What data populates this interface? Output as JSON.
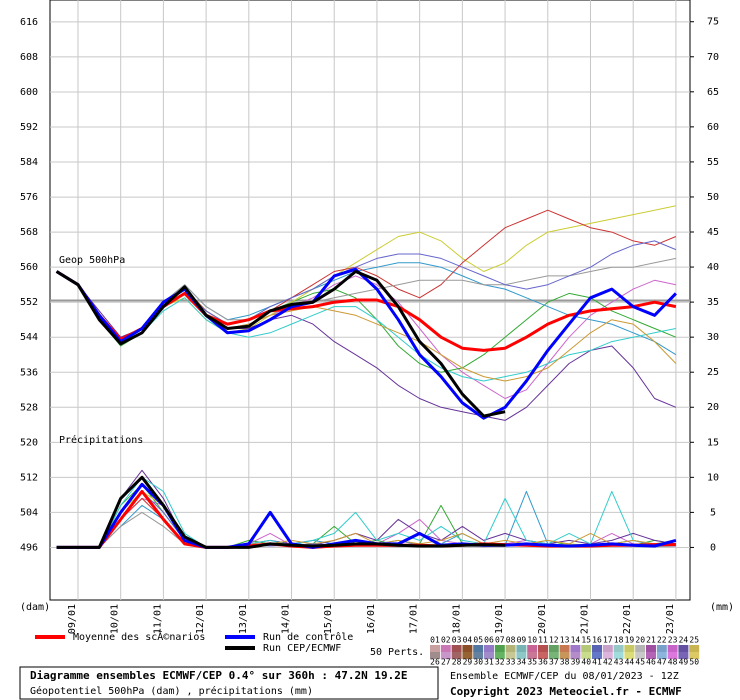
{
  "chart_data": {
    "type": "line",
    "annotations": {
      "geop": "Geop 500hPa",
      "precip": "Précipitations"
    },
    "ylabel": "(dam)",
    "y2label": "(mm)",
    "x": [
      8.5,
      9,
      9.5,
      10,
      10.5,
      11,
      11.5,
      12,
      12.5,
      13,
      13.5,
      14,
      14.5,
      15,
      15.5,
      16,
      16.5,
      17,
      17.5,
      18,
      18.5,
      19,
      19.5,
      20,
      20.5,
      21,
      21.5,
      22,
      22.5,
      23
    ],
    "xlim": [
      8.345,
      23.33
    ],
    "xticks": [
      {
        "value": 9,
        "label": "09/01"
      },
      {
        "value": 10,
        "label": "10/01"
      },
      {
        "value": 11,
        "label": "11/01"
      },
      {
        "value": 12,
        "label": "12/01"
      },
      {
        "value": 13,
        "label": "13/01"
      },
      {
        "value": 14,
        "label": "14/01"
      },
      {
        "value": 15,
        "label": "15/01"
      },
      {
        "value": 16,
        "label": "16/01"
      },
      {
        "value": 17,
        "label": "17/01"
      },
      {
        "value": 18,
        "label": "18/01"
      },
      {
        "value": 19,
        "label": "19/01"
      },
      {
        "value": 20,
        "label": "20/01"
      },
      {
        "value": 21,
        "label": "21/01"
      },
      {
        "value": 22,
        "label": "22/01"
      },
      {
        "value": 23,
        "label": "23/01"
      }
    ],
    "ylim": [
      484,
      621
    ],
    "yticks": [
      496,
      504,
      512,
      520,
      528,
      536,
      544,
      552,
      560,
      568,
      576,
      584,
      592,
      600,
      608,
      616
    ],
    "y2lim": [
      -7.5,
      78.1
    ],
    "y2ticks": [
      0,
      5,
      10,
      15,
      20,
      25,
      30,
      35,
      40,
      45,
      50,
      55,
      60,
      65,
      70,
      75
    ],
    "grid": true,
    "reference_line": 552.4,
    "series": [
      {
        "name": "Moyenne des scÃ©narios",
        "color": "#ff0000",
        "values": [
          559,
          556,
          549,
          543.5,
          546,
          551,
          554,
          549,
          547,
          548,
          550,
          550.5,
          551,
          552,
          552.5,
          552.5,
          551,
          548,
          544,
          541.5,
          541,
          541.5,
          544,
          547,
          549,
          550,
          550.5,
          551,
          552,
          551
        ]
      },
      {
        "name": "Run de contrôle",
        "color": "#0000ff",
        "values": [
          559,
          556,
          549,
          543,
          546,
          552,
          555,
          549,
          545,
          545.5,
          548,
          551,
          552,
          558,
          559.5,
          555,
          548,
          540,
          535,
          529,
          525.5,
          528,
          534,
          541,
          547,
          553,
          555,
          551,
          549,
          554
        ]
      },
      {
        "name": "Run CEP/ECMWF",
        "color": "#000000",
        "values": [
          559,
          556,
          548,
          542.5,
          545,
          551,
          555.5,
          549,
          546,
          546.5,
          550,
          551.5,
          552,
          555,
          559,
          557,
          551,
          543,
          538,
          531,
          526,
          527,
          null,
          null,
          null,
          null,
          null,
          null,
          null,
          null
        ]
      },
      {
        "axis": "y2",
        "color": "#ff0000",
        "values": [
          0,
          0,
          0,
          4,
          8,
          4,
          0.5,
          0,
          0,
          0.2,
          0.5,
          0.2,
          0,
          0.2,
          0.3,
          0.3,
          0.3,
          0.3,
          0.2,
          0.3,
          0.5,
          0.4,
          0.3,
          0.2,
          0.2,
          0.2,
          0.3,
          0.3,
          0.4,
          0.4
        ]
      },
      {
        "axis": "y2",
        "color": "#0000ff",
        "values": [
          0,
          0,
          0,
          5,
          9,
          6,
          1,
          0,
          0,
          0.5,
          5,
          0.5,
          0,
          0.5,
          1,
          0.5,
          0.5,
          2,
          0.3,
          0.5,
          0.3,
          0.3,
          0.5,
          0.3,
          0.2,
          0.3,
          0.5,
          0.3,
          0.2,
          1
        ]
      },
      {
        "axis": "y2",
        "color": "#000000",
        "values": [
          0,
          0,
          0,
          7,
          10,
          6,
          1.5,
          0,
          0,
          0,
          0.5,
          0.3,
          0.2,
          0.3,
          0.5,
          0.5,
          0.3,
          0.2,
          0.2,
          0.3,
          0.4,
          0.3,
          null,
          null,
          null,
          null,
          null,
          null,
          null,
          null
        ]
      }
    ],
    "perturbations": [
      {
        "color": "#cc66cc",
        "values": [
          559,
          556,
          549,
          544,
          546,
          551,
          554,
          549,
          546,
          547,
          549,
          551,
          553,
          556,
          558,
          556,
          552,
          546,
          540,
          536,
          533,
          530,
          532,
          538,
          544,
          549,
          552,
          555,
          557,
          556
        ],
        "precip": [
          0,
          0,
          0,
          4,
          7,
          6,
          1,
          0,
          0,
          0.5,
          2,
          0.3,
          0,
          0.5,
          1,
          0.5,
          2,
          4,
          1,
          0.5,
          0.3,
          0.5,
          1,
          0.5,
          0.3,
          0.5,
          2,
          0.5,
          0.3,
          0.5
        ]
      },
      {
        "color": "#33aa33",
        "values": [
          559,
          556,
          548,
          542,
          545,
          551,
          555,
          550,
          547,
          548,
          550,
          552,
          554,
          555,
          553,
          548,
          542,
          538,
          536,
          537,
          540,
          544,
          548,
          552,
          554,
          553,
          550,
          548,
          546,
          544
        ],
        "precip": [
          0,
          0,
          0,
          6,
          9,
          5,
          1,
          0,
          0,
          1,
          0.5,
          0.2,
          0.5,
          3,
          0.5,
          1,
          0.3,
          0.5,
          6,
          0.5,
          0.3,
          0.2,
          0.5,
          1,
          0.3,
          0.2,
          0.5,
          0.3,
          1,
          0.5
        ]
      },
      {
        "color": "#3399cc",
        "values": [
          559,
          556,
          549,
          543,
          546,
          552,
          556,
          551,
          548,
          549,
          551,
          553,
          555,
          557,
          559,
          560,
          561,
          561,
          560,
          558,
          556,
          555,
          553,
          551,
          549,
          548,
          547,
          545,
          543,
          540
        ],
        "precip": [
          0,
          0,
          0,
          3,
          6,
          4,
          0.5,
          0,
          0,
          0.2,
          0.3,
          0.5,
          1,
          0.5,
          0.3,
          0.5,
          1,
          0.3,
          0.5,
          2,
          0.5,
          0.3,
          8,
          0.5,
          0.3,
          0.2,
          0.5,
          1,
          0.3,
          0.2
        ]
      },
      {
        "color": "#cccc33",
        "values": [
          559,
          556,
          549,
          543,
          546,
          551,
          553,
          548,
          545,
          546,
          549,
          552,
          555,
          558,
          561,
          564,
          567,
          568,
          566,
          562,
          559,
          561,
          565,
          568,
          569,
          570,
          571,
          572,
          573,
          574
        ],
        "precip": [
          0,
          0,
          0,
          5,
          8,
          6,
          1,
          0,
          0,
          0.3,
          0.5,
          0.2,
          0.3,
          0.2,
          0.5,
          0.3,
          0.2,
          0.3,
          0.5,
          0.2,
          0.3,
          0.2,
          0.3,
          0.2,
          0.5,
          0.3,
          0.2,
          0.3,
          0.2,
          0.3
        ]
      },
      {
        "color": "#663399",
        "values": [
          559,
          556,
          550,
          544,
          546,
          551,
          554,
          549,
          546,
          546,
          548,
          549,
          547,
          543,
          540,
          537,
          533,
          530,
          528,
          527,
          526,
          525,
          528,
          533,
          538,
          541,
          542,
          537,
          530,
          528
        ],
        "precip": [
          0,
          0,
          0,
          7,
          11,
          7,
          1,
          0,
          0,
          0.5,
          1,
          0.5,
          0.3,
          1,
          2,
          1,
          4,
          2,
          1,
          3,
          1,
          2,
          1,
          0.5,
          1,
          0.5,
          1,
          2,
          1,
          0.5
        ]
      },
      {
        "color": "#cc3333",
        "values": [
          559,
          556,
          549,
          543,
          546,
          551,
          555,
          550,
          547,
          548,
          550,
          553,
          556,
          559,
          560,
          558,
          555,
          553,
          556,
          561,
          565,
          569,
          571,
          573,
          571,
          569,
          568,
          566,
          565,
          567
        ],
        "precip": [
          0,
          0,
          0,
          4,
          7,
          4,
          0.5,
          0,
          0,
          0.2,
          0.5,
          0.3,
          0.2,
          0.3,
          0.2,
          0.5,
          0.3,
          0.2,
          0.3,
          0.2,
          0.3,
          0.2,
          0.3,
          0.2,
          0.3,
          0.2,
          0.3,
          0.2,
          0.3,
          0.2
        ]
      },
      {
        "color": "#33cccc",
        "values": [
          559,
          556,
          549,
          543,
          545,
          550,
          553,
          548,
          545,
          544,
          545,
          547,
          549,
          551,
          551,
          548,
          544,
          540,
          537,
          535,
          534,
          535,
          536,
          538,
          540,
          541,
          543,
          544,
          545,
          546
        ],
        "precip": [
          0,
          0,
          0,
          6,
          10,
          8,
          2,
          0,
          0,
          0.5,
          1,
          0.3,
          1,
          2,
          5,
          1,
          2,
          1,
          3,
          1,
          0.5,
          7,
          1,
          0.5,
          2,
          0.5,
          8,
          1,
          0.5,
          1
        ]
      },
      {
        "color": "#999999",
        "values": [
          559,
          556,
          549,
          543,
          546,
          552,
          556,
          551,
          548,
          548,
          550,
          551,
          552,
          553,
          554,
          555,
          556,
          557,
          557,
          557,
          556,
          556,
          557,
          558,
          558,
          559,
          560,
          560,
          561,
          562
        ],
        "precip": [
          0,
          0,
          0,
          3,
          5,
          3,
          0.5,
          0,
          0,
          0.2,
          0.3,
          0.2,
          0.1,
          0.2,
          0.3,
          0.2,
          0.1,
          0.2,
          0.3,
          0.2,
          0.1,
          0.2,
          0.3,
          0.2,
          0.1,
          0.2,
          0.3,
          0.2,
          0.1,
          0.2
        ]
      },
      {
        "color": "#cc9933",
        "values": [
          559,
          556,
          549,
          543,
          546,
          551,
          554,
          549,
          546,
          547,
          549,
          550,
          551,
          550,
          549,
          547,
          545,
          543,
          540,
          537,
          535,
          534,
          535,
          537,
          541,
          545,
          548,
          547,
          543,
          538
        ],
        "precip": [
          0,
          0,
          0,
          5,
          9,
          6,
          1,
          0,
          0,
          0.5,
          0.5,
          1,
          0.5,
          1,
          2,
          0.5,
          1,
          0.5,
          1,
          2,
          0.5,
          1,
          0.5,
          1,
          0.5,
          2,
          0.5,
          1,
          0.5,
          1
        ]
      },
      {
        "color": "#6666cc",
        "values": [
          559,
          556,
          549,
          543,
          546,
          551,
          554,
          550,
          547,
          548,
          551,
          553,
          555,
          558,
          560,
          562,
          563,
          563,
          562,
          560,
          558,
          556,
          555,
          556,
          558,
          560,
          563,
          565,
          566,
          564
        ],
        "precip": [
          0,
          0,
          0,
          4,
          8,
          5,
          1,
          0,
          0,
          0.3,
          0.2,
          0.3,
          0.5,
          0.3,
          0.2,
          0.5,
          0.3,
          0.2,
          0.3,
          0.5,
          0.3,
          0.2,
          0.3,
          0.5,
          0.3,
          0.2,
          0.3,
          0.5,
          0.3,
          0.2
        ]
      }
    ],
    "perturbation_legend": {
      "title": "50 Perts.",
      "labels": [
        "01",
        "02",
        "03",
        "04",
        "05",
        "06",
        "07",
        "08",
        "09",
        "10",
        "11",
        "12",
        "13",
        "14",
        "15",
        "16",
        "17",
        "18",
        "19",
        "20",
        "21",
        "22",
        "23",
        "24",
        "25",
        "26",
        "27",
        "28",
        "29",
        "30",
        "31",
        "32",
        "33",
        "34",
        "35",
        "36",
        "37",
        "38",
        "39",
        "40",
        "41",
        "42",
        "43",
        "44",
        "45",
        "46",
        "47",
        "48",
        "49",
        "50"
      ],
      "colors": [
        "#c8a0a0",
        "#c878b4",
        "#a05050",
        "#8c5028",
        "#5078a0",
        "#9678c8",
        "#50a050",
        "#b4b478",
        "#78b4b4",
        "#c86496",
        "#b45050",
        "#64a064",
        "#c87850",
        "#a078c8",
        "#b4c878",
        "#5a64b4",
        "#c8a0c8",
        "#96c8c8",
        "#c8c864",
        "#b4b4b4",
        "#a050a0",
        "#78a0c8",
        "#c864c8",
        "#6450a0",
        "#c8b450",
        "#a08c8c",
        "#c896c8",
        "#a06464",
        "#966432",
        "#6482a0",
        "#a08cc8",
        "#64b464",
        "#c8c896",
        "#8cc8c8",
        "#c87896",
        "#c86464",
        "#78b478",
        "#c8965a",
        "#b48cc8",
        "#c8dc8c",
        "#6478c8",
        "#dcb4dc",
        "#a0dcdc",
        "#dcdc78",
        "#c8c8c8",
        "#b464b4",
        "#8cb4dc",
        "#dc78dc",
        "#7864b4",
        "#dcc864"
      ]
    },
    "footer": {
      "title": "Diagramme ensembles ECMWF/CEP 0.4° sur 360h : 47.2N 19.2E",
      "subtitle": "Géopotentiel 500hPa (dam) , précipitations (mm)",
      "run": "Ensemble ECMWF/CEP du 08/01/2023 - 12Z",
      "copyright": "Copyright 2023 Meteociel.fr - ECMWF"
    }
  }
}
